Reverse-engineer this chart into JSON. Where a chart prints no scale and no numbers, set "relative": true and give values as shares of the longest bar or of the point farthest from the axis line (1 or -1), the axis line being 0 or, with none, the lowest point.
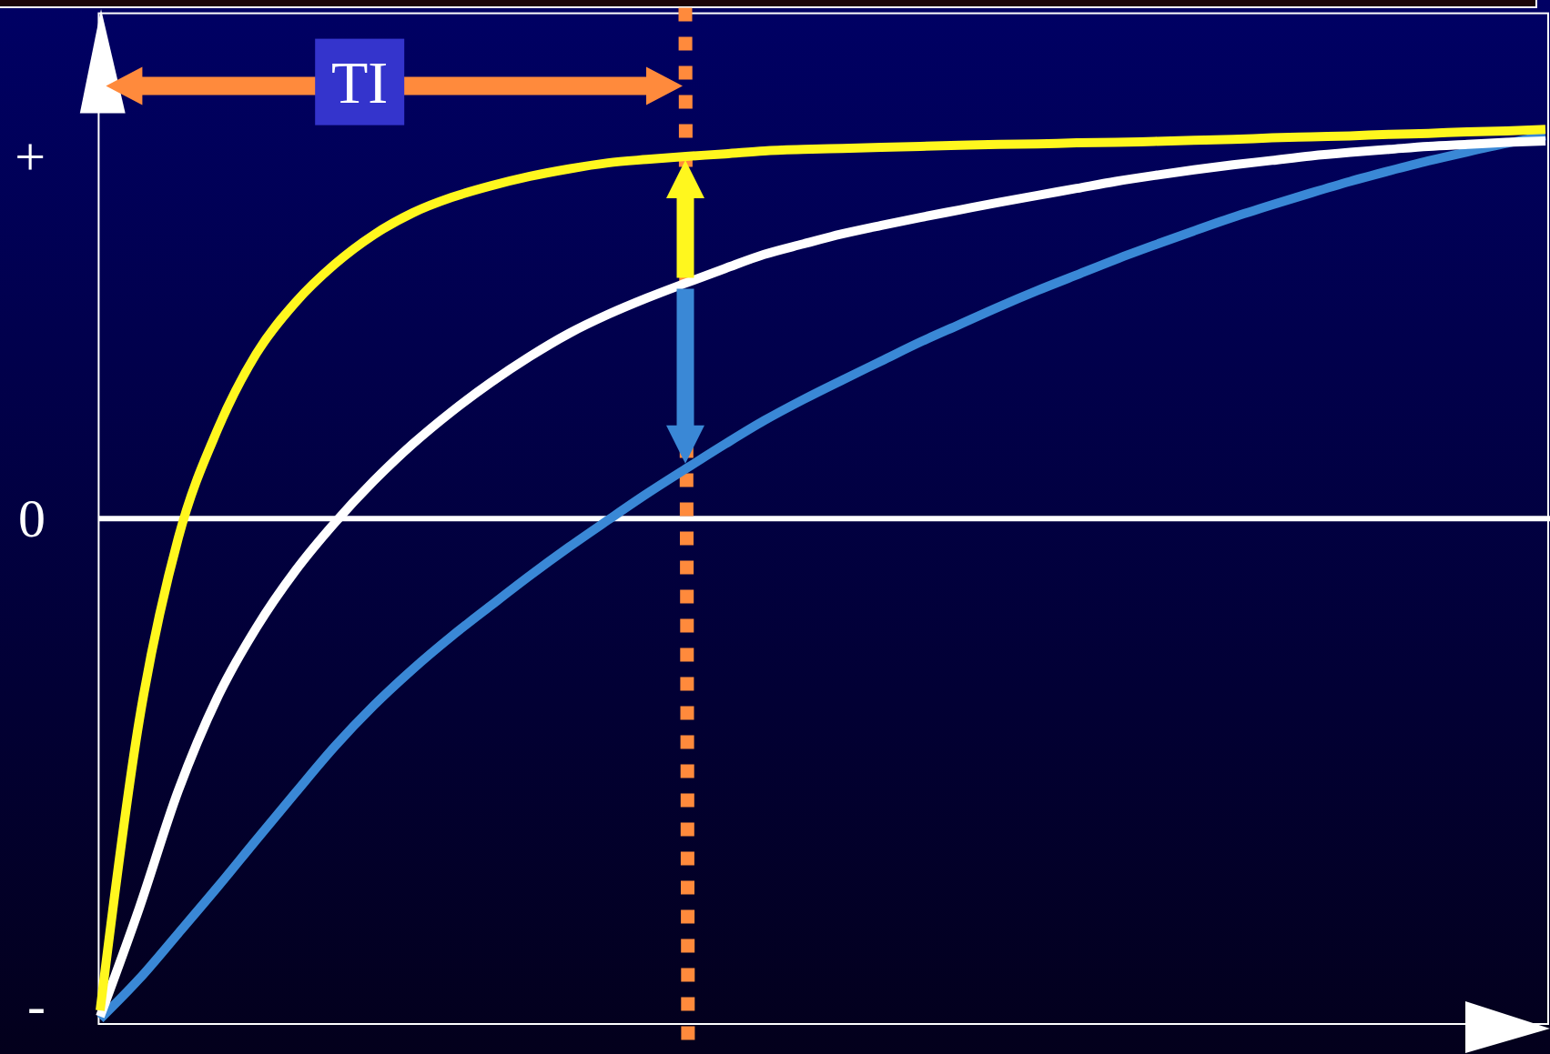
{
  "chart_data": {
    "type": "line",
    "relative": true,
    "categories": [
      null,
      null,
      null,
      null,
      null,
      null,
      null,
      null,
      null,
      null,
      null,
      null,
      null,
      null,
      null,
      null,
      null,
      null,
      null,
      null,
      null,
      null,
      null,
      null,
      null,
      null,
      null,
      null,
      null,
      null,
      null,
      null,
      null,
      null,
      null,
      null,
      null,
      null
    ],
    "series": [
      {
        "color": "#fff71e",
        "values": [
          -0.983,
          -0.404,
          -0.039,
          0.177,
          0.33,
          0.432,
          0.508,
          0.567,
          0.611,
          0.642,
          0.665,
          0.684,
          0.699,
          0.711,
          0.718,
          0.724,
          0.729,
          0.735,
          0.738,
          0.74,
          0.742,
          0.744,
          0.746,
          0.748,
          0.749,
          0.751,
          0.752,
          0.754,
          0.756,
          0.758,
          0.761,
          0.763,
          0.765,
          0.768,
          0.77,
          0.773,
          0.775,
          0.778
        ]
      },
      {
        "color": "#ffffff",
        "values": [
          -0.995,
          -0.779,
          -0.544,
          -0.358,
          -0.218,
          -0.104,
          -0.009,
          0.075,
          0.149,
          0.214,
          0.272,
          0.324,
          0.37,
          0.408,
          0.441,
          0.471,
          0.5,
          0.528,
          0.549,
          0.569,
          0.586,
          0.602,
          0.617,
          0.632,
          0.646,
          0.66,
          0.674,
          0.686,
          0.697,
          0.707,
          0.716,
          0.725,
          0.732,
          0.738,
          0.744,
          0.748,
          0.752,
          0.755
        ]
      },
      {
        "color": "#3a88d6",
        "values": [
          -1,
          -0.92,
          -0.829,
          -0.737,
          -0.642,
          -0.548,
          -0.456,
          -0.374,
          -0.301,
          -0.235,
          -0.174,
          -0.114,
          -0.057,
          -0.003,
          0.05,
          0.1,
          0.149,
          0.196,
          0.238,
          0.277,
          0.315,
          0.353,
          0.388,
          0.423,
          0.456,
          0.487,
          0.518,
          0.547,
          0.575,
          0.602,
          0.627,
          0.651,
          0.674,
          0.695,
          0.715,
          0.733,
          0.75,
          0.765
        ]
      }
    ],
    "ref_lines": [
      {
        "axis": "y",
        "value": 0,
        "label": "0",
        "color": "#ffffff"
      }
    ],
    "annotations": [
      "TI",
      "+",
      "-"
    ]
  }
}
